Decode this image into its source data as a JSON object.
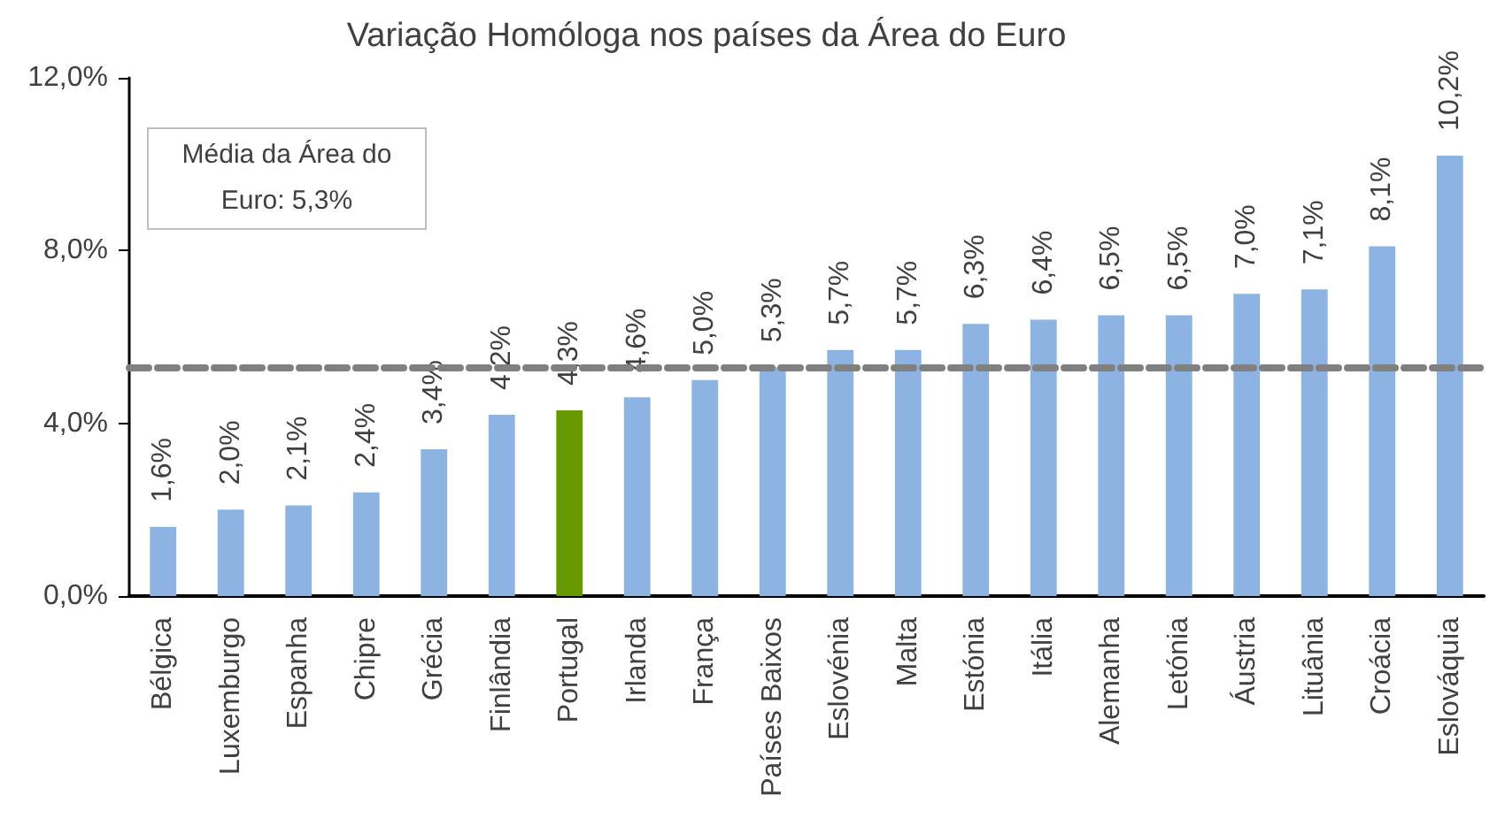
{
  "chart_data": {
    "type": "bar",
    "title": "Variação Homóloga nos países da Área do Euro",
    "categories": [
      "Bélgica",
      "Luxemburgo",
      "Espanha",
      "Chipre",
      "Grécia",
      "Finlândia",
      "Portugal",
      "Irlanda",
      "França",
      "Países Baixos",
      "Eslovénia",
      "Malta",
      "Estónia",
      "Itália",
      "Alemanha",
      "Letónia",
      "Áustria",
      "Lituânia",
      "Croácia",
      "Eslováquia"
    ],
    "values": [
      1.6,
      2.0,
      2.1,
      2.4,
      3.4,
      4.2,
      4.3,
      4.6,
      5.0,
      5.3,
      5.7,
      5.7,
      6.3,
      6.4,
      6.5,
      6.5,
      7.0,
      7.1,
      8.1,
      10.2
    ],
    "colors": [
      "#8db3e2",
      "#8db3e2",
      "#8db3e2",
      "#8db3e2",
      "#8db3e2",
      "#8db3e2",
      "#669900",
      "#8db3e2",
      "#8db3e2",
      "#8db3e2",
      "#8db3e2",
      "#8db3e2",
      "#8db3e2",
      "#8db3e2",
      "#8db3e2",
      "#8db3e2",
      "#8db3e2",
      "#8db3e2",
      "#8db3e2",
      "#8db3e2"
    ],
    "value_labels": [
      "1,6%",
      "2,0%",
      "2,1%",
      "2,4%",
      "3,4%",
      "4,2%",
      "4,3%",
      "4,6%",
      "5,0%",
      "5,3%",
      "5,7%",
      "5,7%",
      "6,3%",
      "6,4%",
      "6,5%",
      "6,5%",
      "7,0%",
      "7,1%",
      "8,1%",
      "10,2%"
    ],
    "ylim": [
      0,
      12
    ],
    "yticks": [
      {
        "value": 0,
        "label": "0,0%"
      },
      {
        "value": 4,
        "label": "4,0%"
      },
      {
        "value": 8,
        "label": "8,0%"
      },
      {
        "value": 12,
        "label": "12,0%"
      }
    ],
    "ref_lines": [
      {
        "axis": "y",
        "value": 5.3,
        "color": "#808080",
        "line_style": "dashed"
      }
    ],
    "annotations": [
      "Média da Área do Euro: 5,3%"
    ]
  }
}
